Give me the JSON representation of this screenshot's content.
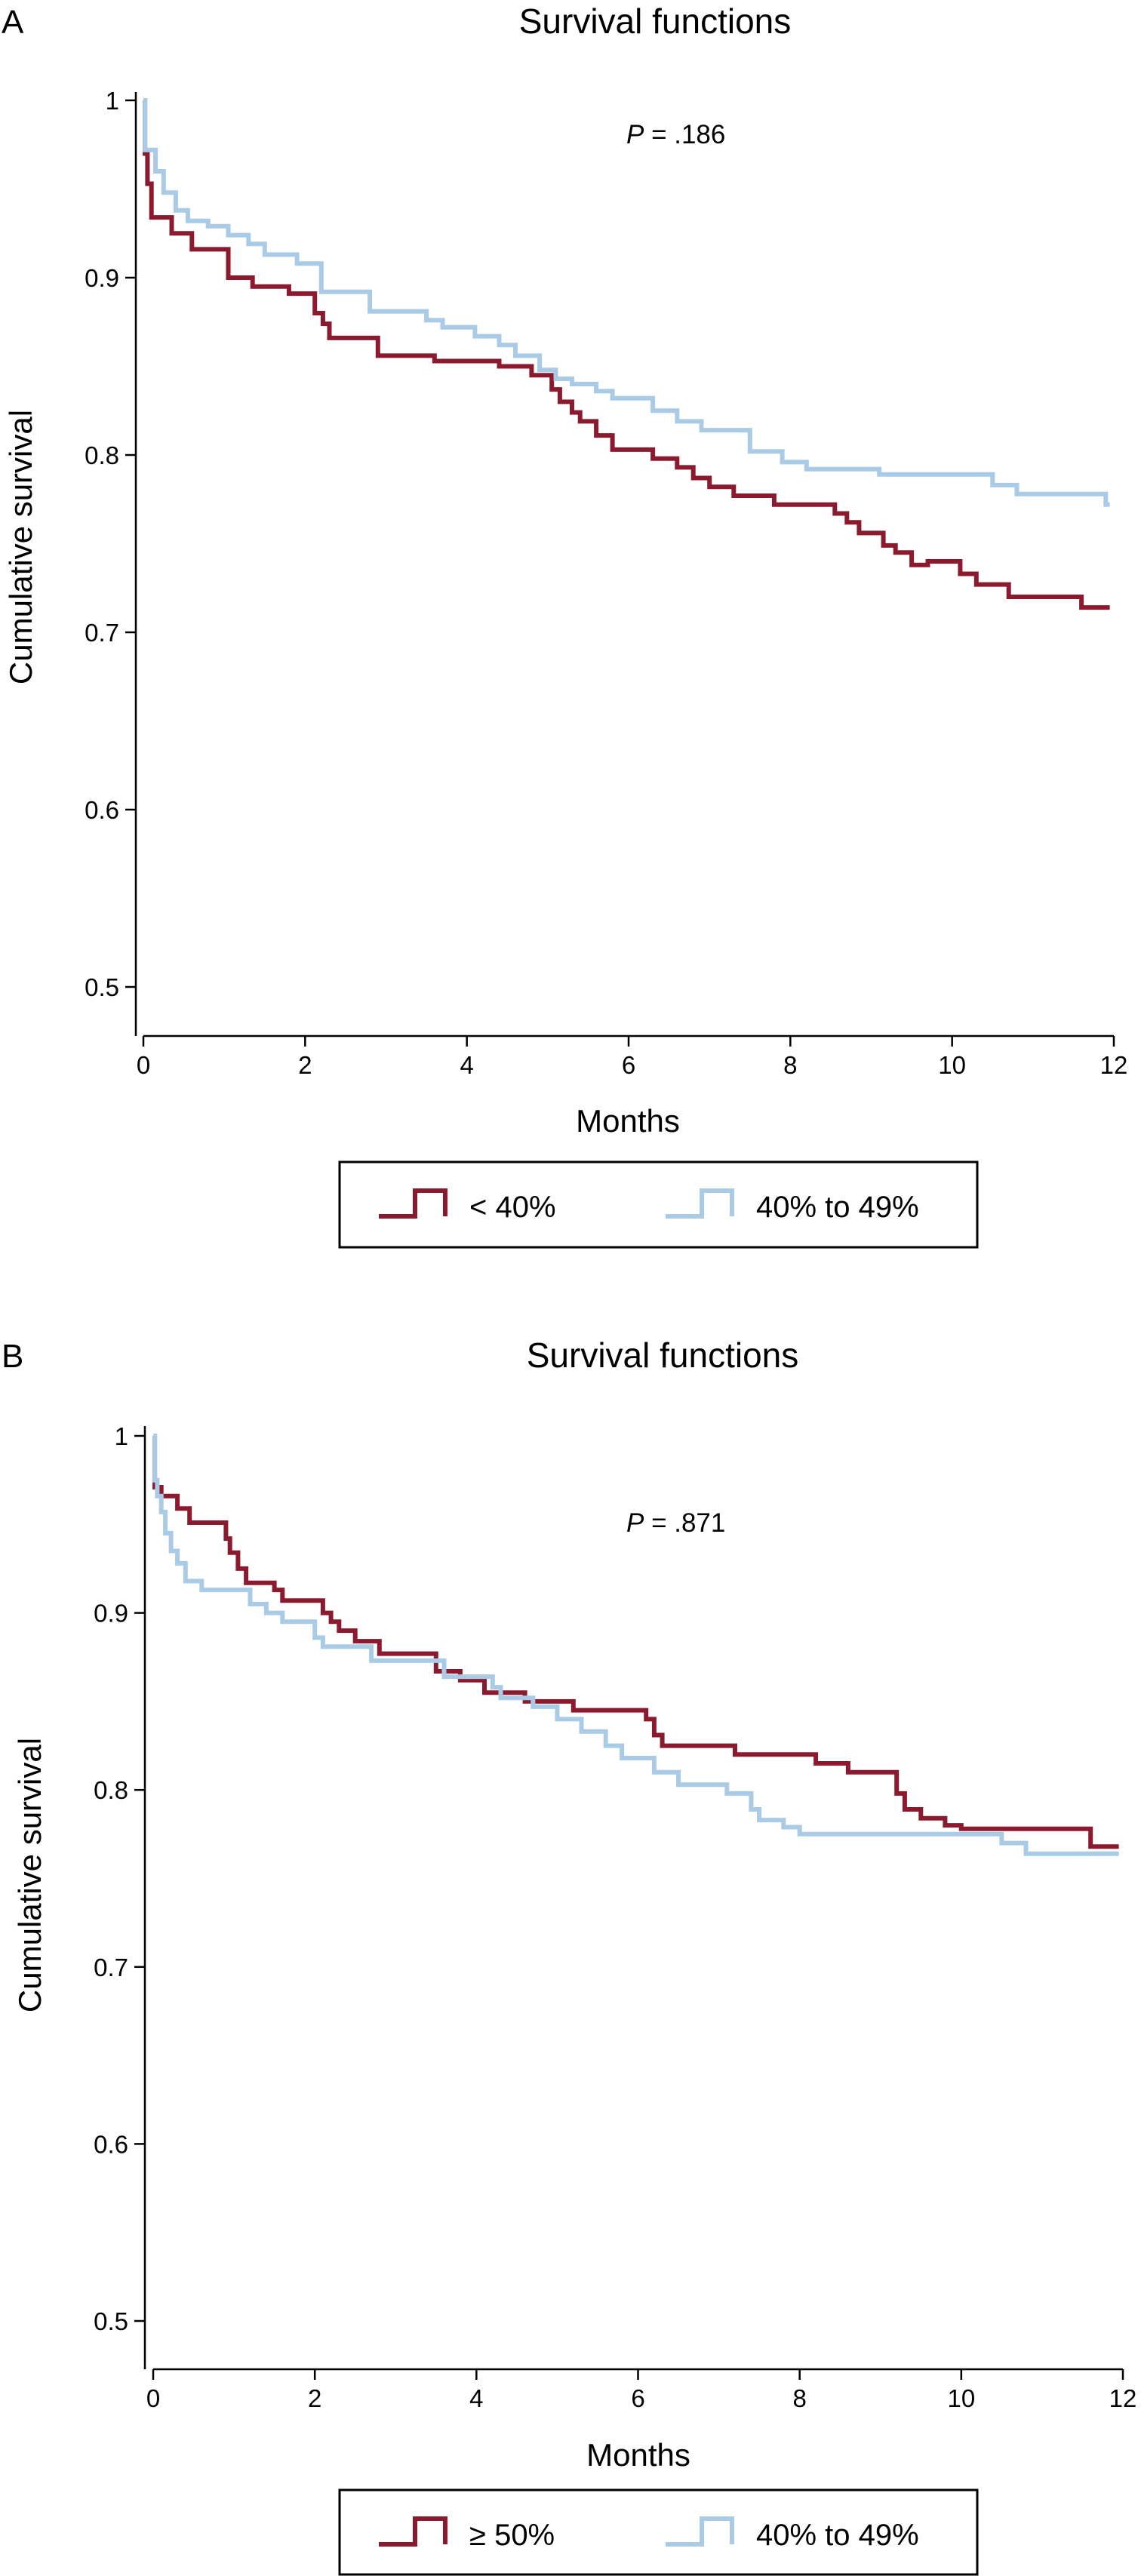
{
  "chart_data": [
    {
      "panel": "A",
      "type": "line",
      "title": "Survival functions",
      "xlabel": "Months",
      "ylabel": "Cumulative survival",
      "xlim": [
        0,
        12
      ],
      "ylim": [
        0.5,
        1.0
      ],
      "xticks": [
        0,
        2,
        4,
        6,
        8,
        10,
        12
      ],
      "yticks": [
        0.5,
        0.6,
        0.7,
        0.8,
        0.9,
        1
      ],
      "annotation_italic": "P",
      "annotation_rest": " = .186",
      "legend_placement": "bottom",
      "series": [
        {
          "name": "< 40%",
          "color": "#8b1a2e",
          "step": true,
          "x": [
            0,
            0.02,
            0.05,
            0.1,
            0.35,
            0.6,
            1.05,
            1.35,
            1.8,
            2.12,
            2.22,
            2.3,
            2.9,
            3.6,
            4.4,
            4.8,
            5.05,
            5.15,
            5.3,
            5.4,
            5.6,
            5.8,
            6.3,
            6.6,
            6.8,
            7.0,
            7.3,
            7.8,
            8.55,
            8.7,
            8.85,
            9.15,
            9.3,
            9.5,
            9.7,
            10.1,
            10.3,
            10.7,
            11.6,
            11.95
          ],
          "y": [
            1.0,
            0.97,
            0.953,
            0.934,
            0.925,
            0.916,
            0.9,
            0.895,
            0.891,
            0.88,
            0.874,
            0.866,
            0.856,
            0.853,
            0.85,
            0.845,
            0.837,
            0.83,
            0.824,
            0.819,
            0.811,
            0.803,
            0.798,
            0.793,
            0.787,
            0.782,
            0.777,
            0.772,
            0.767,
            0.762,
            0.756,
            0.749,
            0.745,
            0.738,
            0.74,
            0.733,
            0.727,
            0.72,
            0.714,
            0.714
          ]
        },
        {
          "name": "40% to 49%",
          "color": "#a9cbe6",
          "step": true,
          "x": [
            0,
            0.02,
            0.15,
            0.25,
            0.4,
            0.55,
            0.8,
            1.05,
            1.3,
            1.5,
            1.9,
            2.2,
            2.8,
            3.5,
            3.7,
            4.1,
            4.4,
            4.6,
            4.9,
            5.1,
            5.3,
            5.6,
            5.8,
            6.3,
            6.6,
            6.9,
            7.5,
            7.9,
            8.2,
            9.1,
            10.5,
            10.8,
            11.9,
            11.95
          ],
          "y": [
            1.0,
            0.972,
            0.96,
            0.948,
            0.938,
            0.932,
            0.929,
            0.924,
            0.919,
            0.913,
            0.908,
            0.892,
            0.881,
            0.876,
            0.872,
            0.867,
            0.862,
            0.856,
            0.848,
            0.843,
            0.84,
            0.836,
            0.832,
            0.825,
            0.819,
            0.814,
            0.802,
            0.796,
            0.792,
            0.789,
            0.783,
            0.778,
            0.772,
            0.772
          ]
        }
      ]
    },
    {
      "panel": "B",
      "type": "line",
      "title": "Survival functions",
      "xlabel": "Months",
      "ylabel": "Cumulative survival",
      "xlim": [
        0,
        12
      ],
      "ylim": [
        0.5,
        1.0
      ],
      "xticks": [
        0,
        2,
        4,
        6,
        8,
        10,
        12
      ],
      "yticks": [
        0.5,
        0.6,
        0.7,
        0.8,
        0.9,
        1
      ],
      "annotation_italic": "P",
      "annotation_rest": " = .871",
      "legend_placement": "bottom",
      "series": [
        {
          "name": "≥ 50%",
          "color": "#8b1a2e",
          "step": true,
          "x": [
            0,
            0.02,
            0.1,
            0.3,
            0.45,
            0.9,
            0.95,
            1.05,
            1.15,
            1.5,
            1.6,
            2.1,
            2.2,
            2.3,
            2.5,
            2.8,
            3.5,
            3.8,
            4.1,
            4.6,
            5.2,
            6.1,
            6.2,
            6.3,
            7.2,
            8.2,
            8.6,
            9.2,
            9.3,
            9.5,
            9.8,
            10.0,
            11.6,
            11.75,
            11.95
          ],
          "y": [
            1.0,
            0.971,
            0.966,
            0.959,
            0.951,
            0.942,
            0.934,
            0.925,
            0.917,
            0.913,
            0.907,
            0.9,
            0.895,
            0.89,
            0.884,
            0.877,
            0.867,
            0.862,
            0.855,
            0.85,
            0.845,
            0.84,
            0.831,
            0.825,
            0.82,
            0.815,
            0.81,
            0.798,
            0.789,
            0.784,
            0.78,
            0.778,
            0.768,
            0.768,
            0.768
          ]
        },
        {
          "name": "40% to 49%",
          "color": "#a9cbe6",
          "step": true,
          "x": [
            0,
            0.02,
            0.05,
            0.1,
            0.15,
            0.22,
            0.3,
            0.4,
            0.6,
            1.2,
            1.4,
            1.6,
            2.0,
            2.1,
            2.7,
            3.6,
            4.2,
            4.3,
            4.7,
            5.0,
            5.3,
            5.6,
            5.8,
            6.2,
            6.5,
            7.1,
            7.4,
            7.5,
            7.8,
            8.0,
            10.5,
            10.8,
            11.95
          ],
          "y": [
            1.0,
            0.975,
            0.966,
            0.957,
            0.945,
            0.935,
            0.928,
            0.918,
            0.913,
            0.905,
            0.9,
            0.895,
            0.886,
            0.881,
            0.873,
            0.864,
            0.858,
            0.852,
            0.847,
            0.84,
            0.833,
            0.825,
            0.818,
            0.81,
            0.803,
            0.798,
            0.789,
            0.783,
            0.779,
            0.775,
            0.77,
            0.764,
            0.764
          ]
        }
      ]
    }
  ]
}
